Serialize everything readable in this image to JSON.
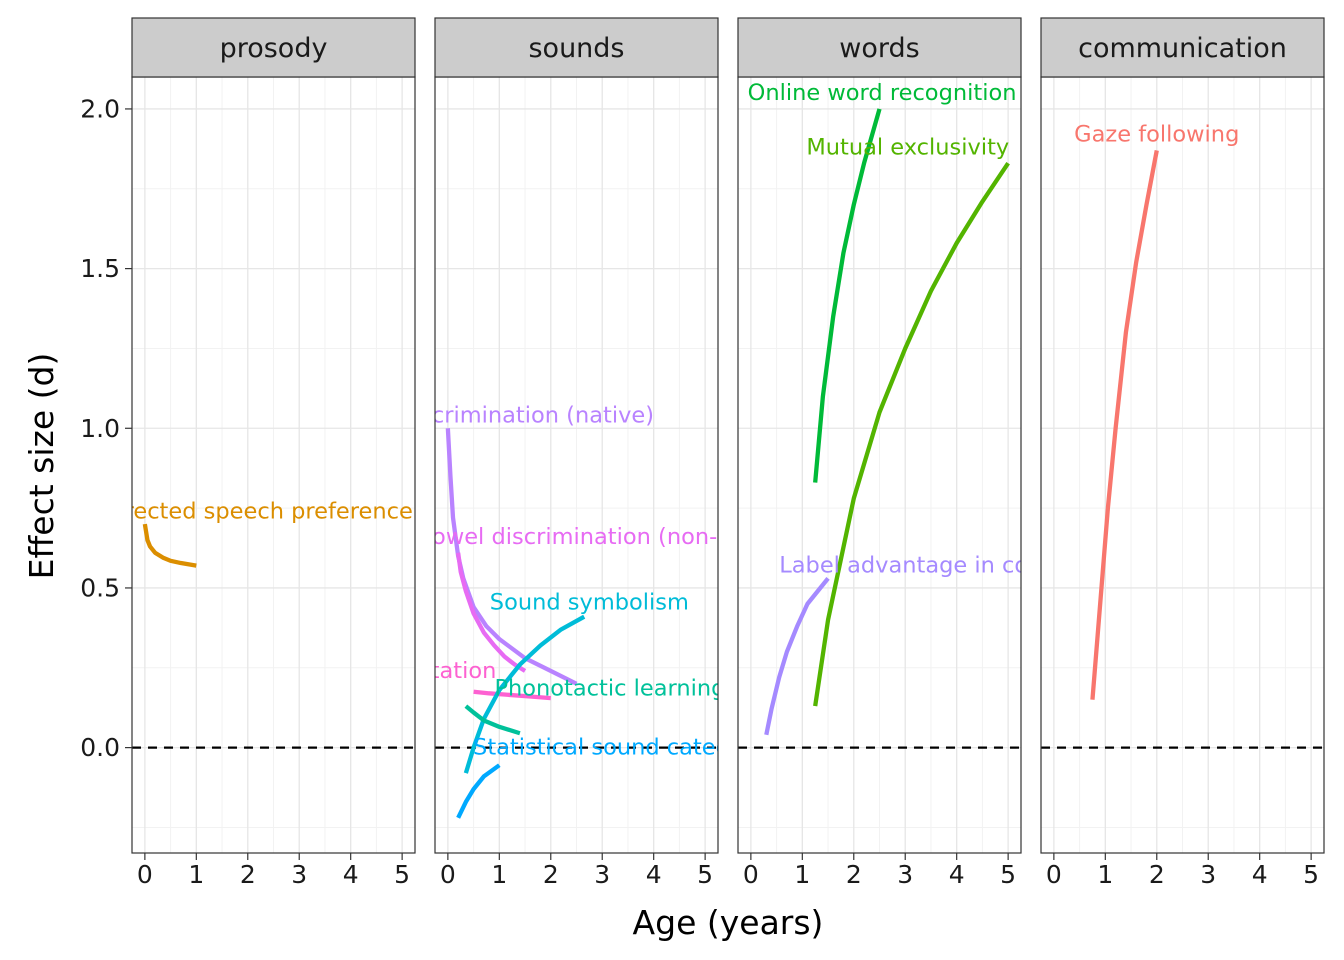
{
  "chart_data": {
    "type": "line",
    "xlabel": "Age (years)",
    "ylabel": "Effect size (d)",
    "xlim": [
      -0.25,
      5.25
    ],
    "ylim": [
      -0.33,
      2.1
    ],
    "x_ticks": [
      "0",
      "1",
      "2",
      "3",
      "4",
      "5"
    ],
    "y_ticks": [
      "0.0",
      "0.5",
      "1.0",
      "1.5",
      "2.0"
    ],
    "reference_line": {
      "y": 0,
      "style": "dashed"
    },
    "grid": true,
    "legend": "none",
    "panels": [
      {
        "facet": "prosody",
        "series": [
          {
            "label": "Infant directed speech preference",
            "color": "#DB8E00",
            "label_at": [
              1.5,
              0.74
            ],
            "points": [
              [
                0,
                0.7
              ],
              [
                0.05,
                0.65
              ],
              [
                0.1,
                0.63
              ],
              [
                0.2,
                0.61
              ],
              [
                0.35,
                0.595
              ],
              [
                0.5,
                0.585
              ],
              [
                0.7,
                0.578
              ],
              [
                1.0,
                0.57
              ]
            ]
          }
        ]
      },
      {
        "facet": "sounds",
        "series": [
          {
            "label": "Native vowel discrimination (native)",
            "color": "#B983FF",
            "label_at": [
              0.05,
              1.04
            ],
            "points": [
              [
                0,
                1.0
              ],
              [
                0.05,
                0.85
              ],
              [
                0.1,
                0.72
              ],
              [
                0.2,
                0.6
              ],
              [
                0.3,
                0.53
              ],
              [
                0.5,
                0.44
              ],
              [
                0.75,
                0.38
              ],
              [
                1.0,
                0.34
              ],
              [
                1.5,
                0.28
              ],
              [
                2.0,
                0.24
              ],
              [
                2.5,
                0.2
              ]
            ]
          },
          {
            "label": "Vowel discrimination (non-native)",
            "color": "#E76BF3",
            "label_at": [
              3.1,
              0.66
            ],
            "points": [
              [
                0.2,
                0.61
              ],
              [
                0.25,
                0.55
              ],
              [
                0.35,
                0.49
              ],
              [
                0.5,
                0.42
              ],
              [
                0.7,
                0.36
              ],
              [
                0.9,
                0.32
              ],
              [
                1.1,
                0.285
              ],
              [
                1.3,
                0.26
              ],
              [
                1.5,
                0.24
              ]
            ]
          },
          {
            "label": "Word segmentation",
            "color": "#FD61D1",
            "label_at": [
              -1.2,
              0.24
            ],
            "points": [
              [
                0.5,
                0.175
              ],
              [
                0.8,
                0.17
              ],
              [
                1.2,
                0.165
              ],
              [
                1.6,
                0.16
              ],
              [
                2.0,
                0.155
              ]
            ]
          },
          {
            "label": "Sound symbolism",
            "color": "#00BCD8",
            "label_at": [
              2.75,
              0.455
            ],
            "points": [
              [
                0.35,
                -0.08
              ],
              [
                0.5,
                0.0
              ],
              [
                0.7,
                0.09
              ],
              [
                1.0,
                0.18
              ],
              [
                1.4,
                0.26
              ],
              [
                1.8,
                0.32
              ],
              [
                2.2,
                0.37
              ],
              [
                2.65,
                0.41
              ]
            ]
          },
          {
            "label": "Phonotactic learning",
            "color": "#00C19A",
            "label_at": [
              3.15,
              0.185
            ],
            "points": [
              [
                0.35,
                0.13
              ],
              [
                0.5,
                0.11
              ],
              [
                0.7,
                0.085
              ],
              [
                1.0,
                0.065
              ],
              [
                1.4,
                0.045
              ]
            ]
          },
          {
            "label": "Statistical sound category learning",
            "color": "#00A9FF",
            "label_at": [
              4.3,
              0.0
            ],
            "points": [
              [
                0.2,
                -0.22
              ],
              [
                0.35,
                -0.17
              ],
              [
                0.5,
                -0.13
              ],
              [
                0.7,
                -0.09
              ],
              [
                1.0,
                -0.055
              ]
            ]
          }
        ]
      },
      {
        "facet": "words",
        "series": [
          {
            "label": "Online word recognition",
            "color": "#00BA38",
            "label_at": [
              2.55,
              2.05
            ],
            "points": [
              [
                1.25,
                0.83
              ],
              [
                1.4,
                1.1
              ],
              [
                1.6,
                1.35
              ],
              [
                1.8,
                1.55
              ],
              [
                2.0,
                1.7
              ],
              [
                2.2,
                1.83
              ],
              [
                2.5,
                2.0
              ]
            ]
          },
          {
            "label": "Mutual exclusivity",
            "color": "#53B400",
            "label_at": [
              3.05,
              1.88
            ],
            "points": [
              [
                1.25,
                0.13
              ],
              [
                1.5,
                0.4
              ],
              [
                2.0,
                0.78
              ],
              [
                2.5,
                1.05
              ],
              [
                3.0,
                1.25
              ],
              [
                3.5,
                1.43
              ],
              [
                4.0,
                1.58
              ],
              [
                4.5,
                1.71
              ],
              [
                5.0,
                1.83
              ]
            ]
          },
          {
            "label": "Label advantage in concept learning",
            "color": "#A58AFF",
            "label_at": [
              4.55,
              0.57
            ],
            "points": [
              [
                0.3,
                0.04
              ],
              [
                0.4,
                0.12
              ],
              [
                0.55,
                0.22
              ],
              [
                0.7,
                0.3
              ],
              [
                0.9,
                0.38
              ],
              [
                1.1,
                0.45
              ],
              [
                1.5,
                0.53
              ]
            ]
          }
        ]
      },
      {
        "facet": "communication",
        "series": [
          {
            "label": "Gaze following",
            "color": "#F8766D",
            "label_at": [
              2.0,
              1.92
            ],
            "points": [
              [
                0.75,
                0.15
              ],
              [
                0.9,
                0.45
              ],
              [
                1.05,
                0.75
              ],
              [
                1.2,
                1.0
              ],
              [
                1.4,
                1.3
              ],
              [
                1.6,
                1.52
              ],
              [
                1.8,
                1.7
              ],
              [
                2.0,
                1.87
              ]
            ]
          }
        ]
      }
    ]
  }
}
